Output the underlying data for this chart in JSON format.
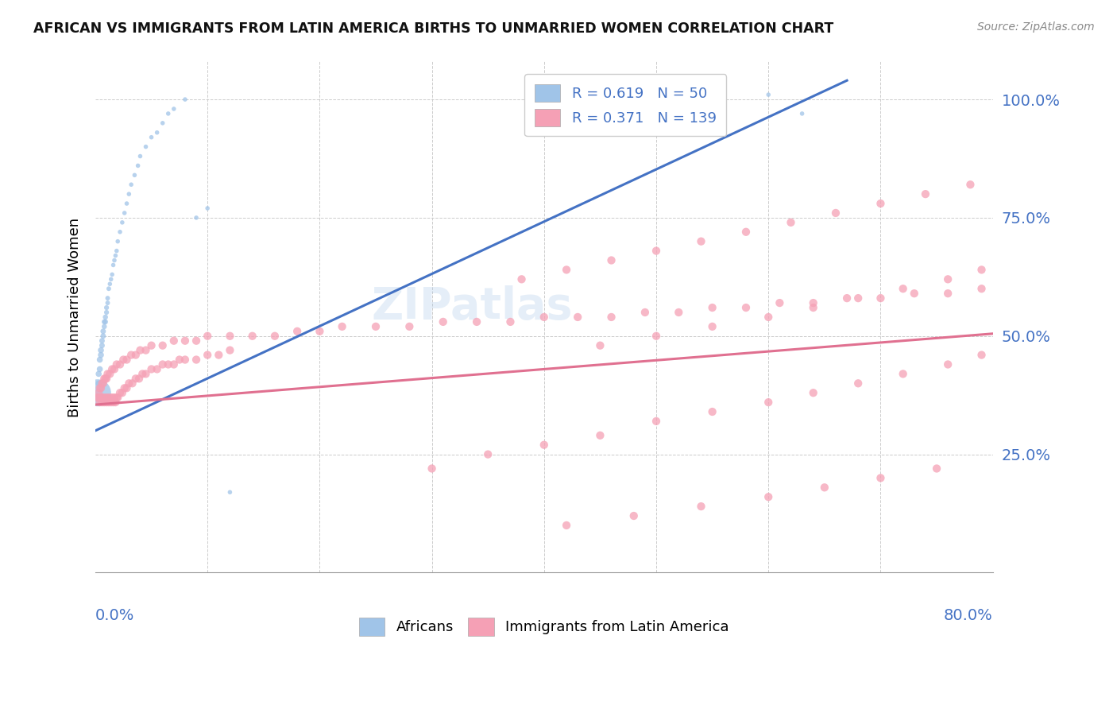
{
  "title": "AFRICAN VS IMMIGRANTS FROM LATIN AMERICA BIRTHS TO UNMARRIED WOMEN CORRELATION CHART",
  "source": "Source: ZipAtlas.com",
  "ylabel": "Births to Unmarried Women",
  "xmin": 0.0,
  "xmax": 0.8,
  "ymin": 0.0,
  "ymax": 1.08,
  "yticks": [
    0.25,
    0.5,
    0.75,
    1.0
  ],
  "ytick_labels": [
    "25.0%",
    "50.0%",
    "75.0%",
    "100.0%"
  ],
  "legend_bottom": [
    "Africans",
    "Immigrants from Latin America"
  ],
  "blue_scatter_color": "#a0c4e8",
  "pink_scatter_color": "#f5a0b5",
  "blue_line_color": "#4472c4",
  "pink_line_color": "#e07090",
  "axis_label_color": "#4472c4",
  "africans_x": [
    0.002,
    0.003,
    0.003,
    0.004,
    0.004,
    0.005,
    0.005,
    0.006,
    0.006,
    0.007,
    0.007,
    0.008,
    0.008,
    0.009,
    0.009,
    0.01,
    0.01,
    0.011,
    0.011,
    0.012,
    0.013,
    0.014,
    0.015,
    0.016,
    0.017,
    0.018,
    0.019,
    0.02,
    0.022,
    0.024,
    0.026,
    0.028,
    0.03,
    0.032,
    0.035,
    0.038,
    0.04,
    0.045,
    0.05,
    0.055,
    0.06,
    0.065,
    0.07,
    0.08,
    0.09,
    0.1,
    0.12,
    0.55,
    0.6,
    0.63
  ],
  "africans_y": [
    0.38,
    0.4,
    0.42,
    0.43,
    0.45,
    0.46,
    0.47,
    0.48,
    0.49,
    0.5,
    0.51,
    0.52,
    0.53,
    0.53,
    0.54,
    0.55,
    0.56,
    0.57,
    0.58,
    0.6,
    0.61,
    0.62,
    0.63,
    0.65,
    0.66,
    0.67,
    0.68,
    0.7,
    0.72,
    0.74,
    0.76,
    0.78,
    0.8,
    0.82,
    0.84,
    0.86,
    0.88,
    0.9,
    0.92,
    0.93,
    0.95,
    0.97,
    0.98,
    1.0,
    0.75,
    0.77,
    0.17,
    1.01,
    1.01,
    0.97
  ],
  "africans_size": [
    600,
    30,
    30,
    30,
    30,
    30,
    30,
    25,
    25,
    25,
    25,
    22,
    22,
    22,
    22,
    20,
    20,
    18,
    18,
    18,
    16,
    16,
    16,
    16,
    16,
    16,
    16,
    16,
    16,
    16,
    16,
    16,
    16,
    16,
    16,
    16,
    16,
    16,
    16,
    16,
    16,
    16,
    16,
    16,
    16,
    16,
    16,
    16,
    16,
    16
  ],
  "africans_trend_x": [
    0.0,
    0.67
  ],
  "africans_trend_y": [
    0.3,
    1.04
  ],
  "latin_x": [
    0.002,
    0.003,
    0.004,
    0.005,
    0.006,
    0.007,
    0.008,
    0.009,
    0.01,
    0.011,
    0.012,
    0.013,
    0.014,
    0.015,
    0.016,
    0.017,
    0.018,
    0.019,
    0.02,
    0.022,
    0.024,
    0.026,
    0.028,
    0.03,
    0.033,
    0.036,
    0.039,
    0.042,
    0.045,
    0.05,
    0.055,
    0.06,
    0.065,
    0.07,
    0.075,
    0.08,
    0.09,
    0.1,
    0.11,
    0.12,
    0.003,
    0.004,
    0.005,
    0.006,
    0.007,
    0.008,
    0.009,
    0.01,
    0.011,
    0.013,
    0.015,
    0.017,
    0.019,
    0.022,
    0.025,
    0.028,
    0.032,
    0.036,
    0.04,
    0.045,
    0.05,
    0.06,
    0.07,
    0.08,
    0.09,
    0.1,
    0.12,
    0.14,
    0.16,
    0.18,
    0.2,
    0.22,
    0.25,
    0.28,
    0.31,
    0.34,
    0.37,
    0.4,
    0.43,
    0.46,
    0.49,
    0.52,
    0.55,
    0.58,
    0.61,
    0.64,
    0.67,
    0.7,
    0.73,
    0.76,
    0.79,
    0.38,
    0.42,
    0.46,
    0.5,
    0.54,
    0.58,
    0.62,
    0.66,
    0.7,
    0.74,
    0.78,
    0.3,
    0.35,
    0.4,
    0.45,
    0.5,
    0.55,
    0.6,
    0.64,
    0.68,
    0.72,
    0.76,
    0.79,
    0.45,
    0.5,
    0.55,
    0.6,
    0.64,
    0.68,
    0.72,
    0.76,
    0.79,
    0.42,
    0.48,
    0.54,
    0.6,
    0.65,
    0.7,
    0.75
  ],
  "latin_y": [
    0.37,
    0.37,
    0.36,
    0.37,
    0.36,
    0.37,
    0.36,
    0.37,
    0.36,
    0.37,
    0.36,
    0.37,
    0.36,
    0.37,
    0.36,
    0.37,
    0.36,
    0.37,
    0.37,
    0.38,
    0.38,
    0.39,
    0.39,
    0.4,
    0.4,
    0.41,
    0.41,
    0.42,
    0.42,
    0.43,
    0.43,
    0.44,
    0.44,
    0.44,
    0.45,
    0.45,
    0.45,
    0.46,
    0.46,
    0.47,
    0.38,
    0.39,
    0.39,
    0.4,
    0.4,
    0.41,
    0.41,
    0.41,
    0.42,
    0.42,
    0.43,
    0.43,
    0.44,
    0.44,
    0.45,
    0.45,
    0.46,
    0.46,
    0.47,
    0.47,
    0.48,
    0.48,
    0.49,
    0.49,
    0.49,
    0.5,
    0.5,
    0.5,
    0.5,
    0.51,
    0.51,
    0.52,
    0.52,
    0.52,
    0.53,
    0.53,
    0.53,
    0.54,
    0.54,
    0.54,
    0.55,
    0.55,
    0.56,
    0.56,
    0.57,
    0.57,
    0.58,
    0.58,
    0.59,
    0.59,
    0.6,
    0.62,
    0.64,
    0.66,
    0.68,
    0.7,
    0.72,
    0.74,
    0.76,
    0.78,
    0.8,
    0.82,
    0.22,
    0.25,
    0.27,
    0.29,
    0.32,
    0.34,
    0.36,
    0.38,
    0.4,
    0.42,
    0.44,
    0.46,
    0.48,
    0.5,
    0.52,
    0.54,
    0.56,
    0.58,
    0.6,
    0.62,
    0.64,
    0.1,
    0.12,
    0.14,
    0.16,
    0.18,
    0.2,
    0.22
  ],
  "latin_trend_x": [
    0.0,
    0.8
  ],
  "latin_trend_y": [
    0.355,
    0.505
  ]
}
